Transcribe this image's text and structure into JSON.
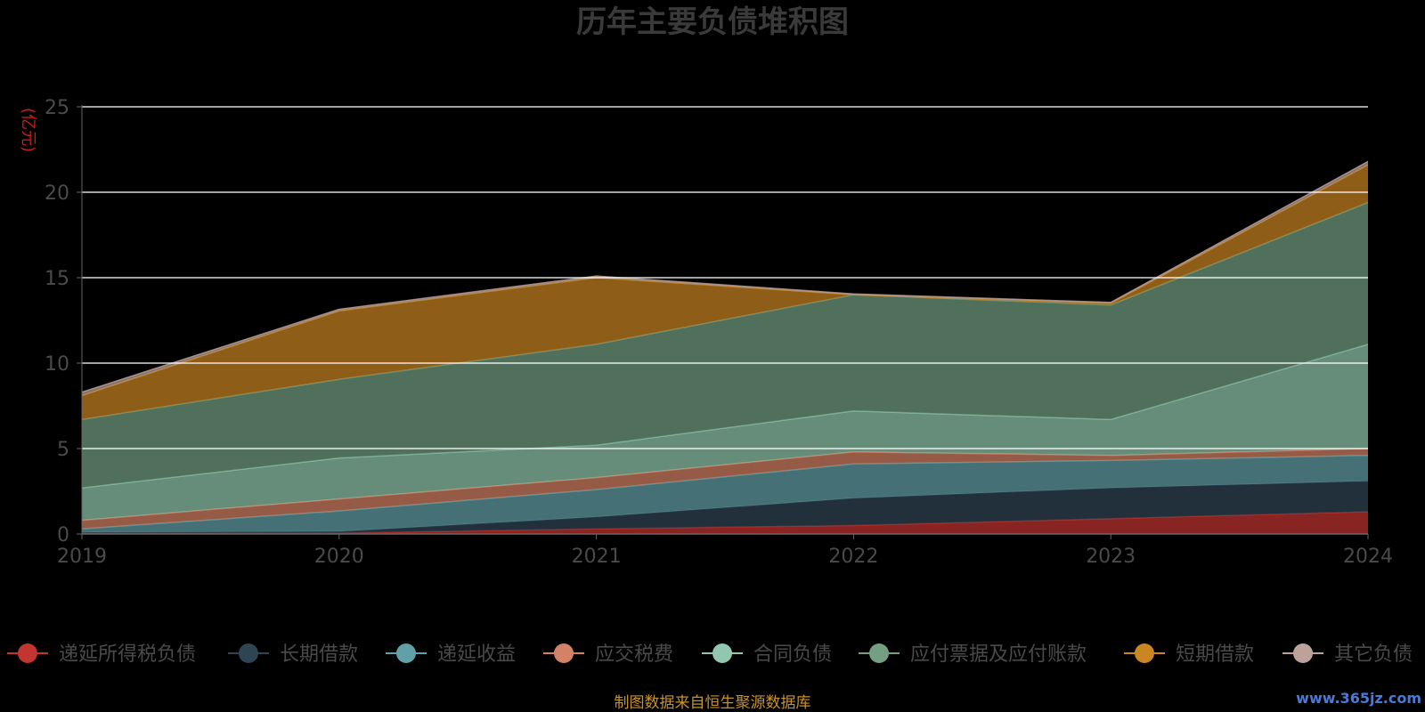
{
  "chart_data": {
    "type": "area",
    "stacked": true,
    "title": "历年主要负债堆积图",
    "unit_label": "(亿元)",
    "x": [
      "2019",
      "2020",
      "2021",
      "2022",
      "2023",
      "2024"
    ],
    "ylim": [
      0,
      25
    ],
    "yticks": [
      0,
      5,
      10,
      15,
      20,
      25
    ],
    "grid": true,
    "legend_position": "bottom",
    "series": [
      {
        "name": "递延所得税负债",
        "color": "#c23531",
        "values": [
          0.05,
          0.05,
          0.3,
          0.5,
          0.9,
          1.3
        ]
      },
      {
        "name": "长期借款",
        "color": "#2f4554",
        "values": [
          0.05,
          0.1,
          0.7,
          1.6,
          1.8,
          1.8
        ]
      },
      {
        "name": "递延收益",
        "color": "#61a0a8",
        "values": [
          0.2,
          1.2,
          1.6,
          2.0,
          1.6,
          1.5
        ]
      },
      {
        "name": "应交税费",
        "color": "#d48265",
        "values": [
          0.5,
          0.7,
          0.7,
          0.7,
          0.3,
          0.4
        ]
      },
      {
        "name": "合同负债",
        "color": "#91c7ae",
        "values": [
          1.9,
          2.4,
          1.9,
          2.4,
          2.1,
          6.1
        ]
      },
      {
        "name": "应付票据及应付账款",
        "color": "#749f83",
        "values": [
          4.0,
          4.6,
          5.9,
          6.8,
          6.7,
          8.3
        ]
      },
      {
        "name": "短期借款",
        "color": "#ca8622",
        "values": [
          1.4,
          4.0,
          3.9,
          0.0,
          0.1,
          2.2
        ]
      },
      {
        "name": "其它负债",
        "color": "#bda29a",
        "values": [
          0.2,
          0.1,
          0.1,
          0.05,
          0.05,
          0.2
        ]
      }
    ]
  },
  "footer": {
    "source": "制图数据来自恒生聚源数据库",
    "watermark": "www.365jz.com"
  }
}
